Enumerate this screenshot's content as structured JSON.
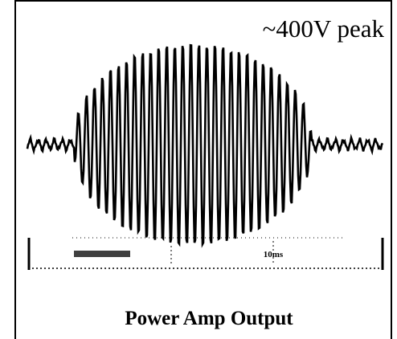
{
  "title": "~400V peak",
  "scale_label": "10ms",
  "caption": "Power Amp Output"
}
